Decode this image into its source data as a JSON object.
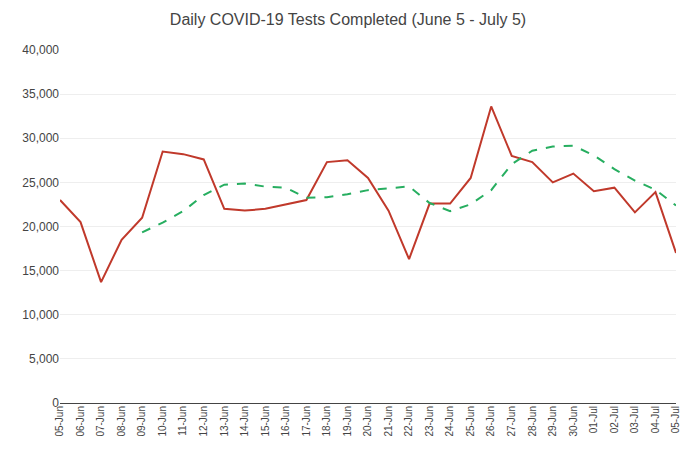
{
  "chart_data": {
    "type": "line",
    "title": "Daily COVID-19 Tests Completed (June 5 - July 5)",
    "categories": [
      "05-Jun",
      "06-Jun",
      "07-Jun",
      "08-Jun",
      "09-Jun",
      "10-Jun",
      "11-Jun",
      "12-Jun",
      "13-Jun",
      "14-Jun",
      "15-Jun",
      "16-Jun",
      "17-Jun",
      "18-Jun",
      "19-Jun",
      "20-Jun",
      "21-Jun",
      "22-Jun",
      "23-Jun",
      "24-Jun",
      "25-Jun",
      "26-Jun",
      "27-Jun",
      "28-Jun",
      "29-Jun",
      "30-Jun",
      "01-Jul",
      "02-Jul",
      "03-Jul",
      "04-Jul",
      "05-Jul"
    ],
    "series": [
      {
        "color": "#c0392b",
        "line_style": "solid",
        "values": [
          23000,
          20500,
          13700,
          18500,
          21000,
          28500,
          28200,
          27600,
          22000,
          21800,
          22000,
          22500,
          23000,
          27300,
          27500,
          25500,
          21800,
          16300,
          22600,
          22600,
          25500,
          33600,
          28000,
          27300,
          25000,
          26000,
          24000,
          24400,
          21600,
          23900,
          17000
        ]
      },
      {
        "color": "#27ae60",
        "line_style": "dashed",
        "values": [
          null,
          null,
          null,
          null,
          19340,
          20440,
          21740,
          23560,
          24740,
          24860,
          24520,
          24380,
          23260,
          23320,
          23660,
          24120,
          24320,
          24540,
          22660,
          21740,
          22520,
          24120,
          27060,
          28580,
          29060,
          29160,
          28060,
          26500,
          25200,
          24160,
          22380
        ]
      }
    ],
    "ylim": [
      0,
      40000
    ],
    "yticks": [
      0,
      {
        "value": 5000,
        "label": "5,000"
      },
      {
        "value": 10000,
        "label": "10,000"
      },
      {
        "value": 15000,
        "label": "15,000"
      },
      {
        "value": 20000,
        "label": "20,000"
      },
      {
        "value": 25000,
        "label": "25,000"
      },
      {
        "value": 30000,
        "label": "30,000"
      },
      {
        "value": 35000,
        "label": "35,000"
      },
      {
        "value": 40000,
        "label": "40,000"
      }
    ],
    "grid": true
  }
}
